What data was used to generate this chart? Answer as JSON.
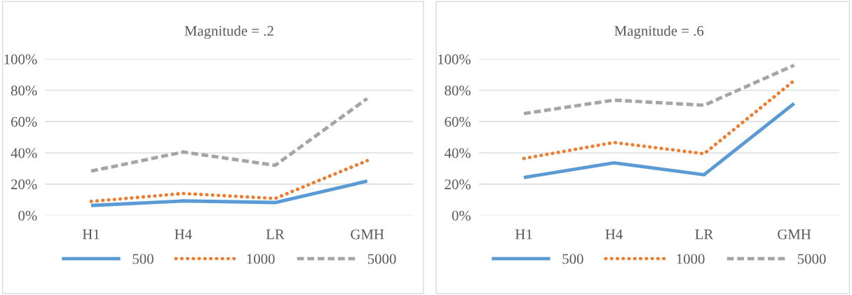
{
  "chart_data": [
    {
      "type": "line",
      "title": "Magnitude = .2",
      "categories": [
        "H1",
        "H4",
        "LR",
        "GMH"
      ],
      "ylim": [
        0,
        100
      ],
      "yticks": [
        {
          "value": 0,
          "label": "0%"
        },
        {
          "value": 20,
          "label": "20%"
        },
        {
          "value": 40,
          "label": "40%"
        },
        {
          "value": 60,
          "label": "60%"
        },
        {
          "value": 80,
          "label": "80%"
        },
        {
          "value": 100,
          "label": "100%"
        }
      ],
      "grid": "y",
      "legend": "bottom",
      "series": [
        {
          "name": "500",
          "color": "#5b9bd5",
          "line_style": "solid",
          "values": [
            6.3,
            9.2,
            8.2,
            21.9
          ]
        },
        {
          "name": "1000",
          "color": "#ed7d31",
          "line_style": "dotted",
          "values": [
            8.9,
            14,
            10.8,
            35
          ]
        },
        {
          "name": "5000",
          "color": "#a5a5a5",
          "line_style": "dashed",
          "values": [
            28.3,
            40.5,
            32,
            74.7
          ]
        }
      ]
    },
    {
      "type": "line",
      "title": "Magnitude = .6",
      "categories": [
        "H1",
        "H4",
        "LR",
        "GMH"
      ],
      "ylim": [
        0,
        100
      ],
      "yticks": [
        {
          "value": 0,
          "label": "0%"
        },
        {
          "value": 20,
          "label": "20%"
        },
        {
          "value": 40,
          "label": "40%"
        },
        {
          "value": 60,
          "label": "60%"
        },
        {
          "value": 80,
          "label": "80%"
        },
        {
          "value": 100,
          "label": "100%"
        }
      ],
      "grid": "y",
      "legend": "bottom",
      "series": [
        {
          "name": "500",
          "color": "#5b9bd5",
          "line_style": "solid",
          "values": [
            24.2,
            33.6,
            26,
            71.6
          ]
        },
        {
          "name": "1000",
          "color": "#ed7d31",
          "line_style": "dotted",
          "values": [
            36.4,
            46.6,
            39.4,
            86.2
          ]
        },
        {
          "name": "5000",
          "color": "#a5a5a5",
          "line_style": "dashed",
          "values": [
            65.1,
            73.7,
            70.4,
            96
          ]
        }
      ]
    }
  ]
}
